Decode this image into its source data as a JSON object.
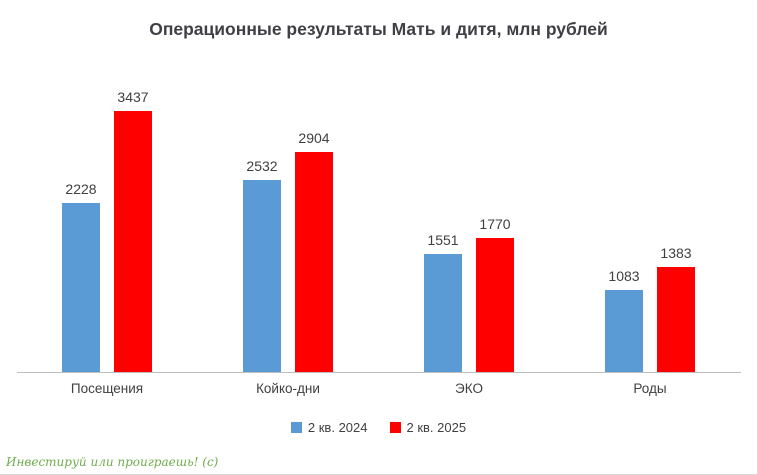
{
  "watermark": "Инвестируй или проиграешь! (с)",
  "chart_data": {
    "type": "bar",
    "title": "Операционные результаты Мать и дитя, млн рублей",
    "categories": [
      "Посещения",
      "Койко-дни",
      "ЭКО",
      "Роды"
    ],
    "series": [
      {
        "name": "2 кв. 2024",
        "color": "#5B9BD5",
        "values": [
          2228,
          2532,
          1551,
          1083
        ]
      },
      {
        "name": "2 кв. 2025",
        "color": "#FF0000",
        "values": [
          3437,
          2904,
          1770,
          1383
        ]
      }
    ],
    "ylim": [
      0,
      3600
    ],
    "xlabel": "",
    "ylabel": "",
    "grid": false,
    "data_labels": true,
    "legend_position": "bottom"
  }
}
